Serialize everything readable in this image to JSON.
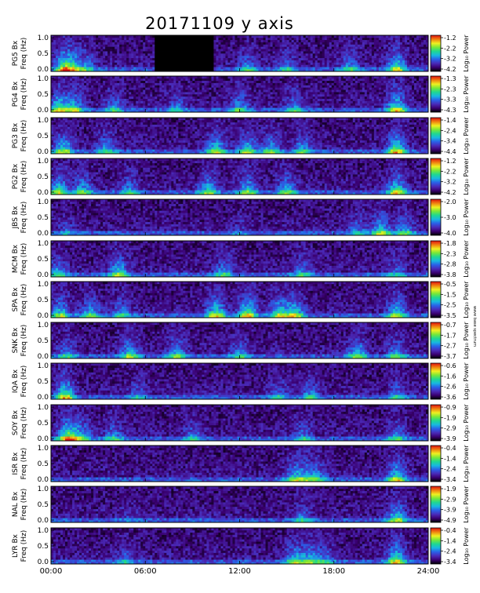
{
  "title": "20171109 y axis",
  "side_note": "wave base spectrum",
  "chart_data": {
    "type": "heatmap",
    "title": "20171109 y axis",
    "x_ticks": [
      "00:00",
      "06:00",
      "12:00",
      "18:00",
      "24:00"
    ],
    "x_range_hours": [
      0,
      24
    ],
    "y_ticks": [
      "1.0",
      "0.5",
      "0.0"
    ],
    "y_range_hz": [
      0.0,
      1.0
    ],
    "ylabel_freq": "Freq (Hz)",
    "colorbar_label": "Log₁₀ Power",
    "colormap": [
      "#000000",
      "#3a0070",
      "#4a2ab8",
      "#2a60e8",
      "#18b8e0",
      "#20d890",
      "#78e838",
      "#f0f020",
      "#f08010",
      "#e01010"
    ],
    "panels": [
      {
        "station": "PG5 Bx",
        "cbar_ticks": [
          "-1.2",
          "-2.2",
          "-3.2",
          "-4.2"
        ],
        "gaps_hours": [
          [
            6.6,
            10.3
          ]
        ],
        "activity": [
          [
            0.8,
            0.55
          ],
          [
            1.3,
            0.45
          ],
          [
            2.2,
            0.35
          ],
          [
            12.5,
            0.35
          ],
          [
            15.0,
            0.3
          ],
          [
            19.0,
            0.35
          ],
          [
            22.0,
            0.6
          ]
        ]
      },
      {
        "station": "PG4 Bx",
        "cbar_ticks": [
          "-1.3",
          "-2.3",
          "-3.3",
          "-4.3"
        ],
        "gaps_hours": [],
        "activity": [
          [
            0.5,
            0.6
          ],
          [
            1.5,
            0.5
          ],
          [
            4.0,
            0.35
          ],
          [
            8.0,
            0.3
          ],
          [
            12.0,
            0.4
          ],
          [
            15.5,
            0.35
          ],
          [
            22.0,
            0.65
          ]
        ]
      },
      {
        "station": "PG3 Bx",
        "cbar_ticks": [
          "-1.4",
          "-2.4",
          "-3.4",
          "-4.4"
        ],
        "gaps_hours": [],
        "activity": [
          [
            0.8,
            0.55
          ],
          [
            3.5,
            0.4
          ],
          [
            10.5,
            0.55
          ],
          [
            12.5,
            0.5
          ],
          [
            14.0,
            0.45
          ],
          [
            16.0,
            0.4
          ],
          [
            22.0,
            0.7
          ]
        ]
      },
      {
        "station": "PG2 Bx",
        "cbar_ticks": [
          "-1.2",
          "-2.2",
          "-3.2",
          "-4.2"
        ],
        "gaps_hours": [],
        "activity": [
          [
            0.5,
            0.55
          ],
          [
            2.0,
            0.45
          ],
          [
            5.0,
            0.35
          ],
          [
            10.0,
            0.5
          ],
          [
            12.5,
            0.5
          ],
          [
            15.0,
            0.45
          ],
          [
            22.0,
            0.6
          ]
        ]
      },
      {
        "station": "JBS Bx",
        "cbar_ticks": [
          "-2.0",
          "-3.0",
          "-4.0"
        ],
        "gaps_hours": [],
        "activity": [
          [
            1.0,
            0.2
          ],
          [
            12.0,
            0.15
          ],
          [
            19.5,
            0.3
          ],
          [
            21.0,
            0.55
          ],
          [
            22.5,
            0.45
          ]
        ]
      },
      {
        "station": "MCM Bx",
        "cbar_ticks": [
          "-1.8",
          "-2.3",
          "-2.8",
          "-3.8"
        ],
        "gaps_hours": [],
        "activity": [
          [
            0.5,
            0.4
          ],
          [
            4.3,
            0.55
          ],
          [
            11.0,
            0.4
          ],
          [
            16.0,
            0.35
          ],
          [
            22.0,
            0.3
          ]
        ]
      },
      {
        "station": "SPA Bx",
        "cbar_ticks": [
          "-0.5",
          "-1.5",
          "-2.5",
          "-3.5"
        ],
        "gaps_hours": [],
        "activity": [
          [
            0.6,
            0.5
          ],
          [
            2.5,
            0.45
          ],
          [
            4.5,
            0.35
          ],
          [
            10.5,
            0.65
          ],
          [
            12.5,
            0.7
          ],
          [
            14.5,
            0.55
          ],
          [
            15.5,
            0.6
          ],
          [
            22.0,
            0.55
          ]
        ]
      },
      {
        "station": "SNK Bx",
        "cbar_ticks": [
          "-0.7",
          "-1.7",
          "-2.7",
          "-3.7"
        ],
        "gaps_hours": [],
        "activity": [
          [
            1.0,
            0.35
          ],
          [
            5.0,
            0.5
          ],
          [
            8.0,
            0.45
          ],
          [
            12.0,
            0.35
          ],
          [
            19.5,
            0.5
          ],
          [
            22.0,
            0.4
          ]
        ]
      },
      {
        "station": "IQA Bx",
        "cbar_ticks": [
          "-0.6",
          "-1.6",
          "-2.6",
          "-3.6"
        ],
        "gaps_hours": [],
        "activity": [
          [
            0.9,
            0.7
          ],
          [
            5.5,
            0.25
          ],
          [
            14.5,
            0.3
          ],
          [
            16.5,
            0.35
          ],
          [
            22.0,
            0.3
          ]
        ]
      },
      {
        "station": "SOY Bx",
        "cbar_ticks": [
          "-0.9",
          "-1.9",
          "-2.9",
          "-3.9"
        ],
        "gaps_hours": [],
        "activity": [
          [
            1.1,
            0.8
          ],
          [
            2.0,
            0.4
          ],
          [
            4.0,
            0.35
          ],
          [
            9.0,
            0.3
          ],
          [
            16.0,
            0.3
          ],
          [
            22.0,
            0.35
          ]
        ]
      },
      {
        "station": "ISR Bx",
        "cbar_ticks": [
          "-0.4",
          "-1.4",
          "-2.4",
          "-3.4"
        ],
        "gaps_hours": [],
        "activity": [
          [
            15.5,
            0.45
          ],
          [
            16.3,
            0.35
          ],
          [
            17.0,
            0.3
          ],
          [
            22.0,
            0.6
          ]
        ]
      },
      {
        "station": "NAL Bx",
        "cbar_ticks": [
          "-1.9",
          "-2.9",
          "-3.9",
          "-4.9"
        ],
        "gaps_hours": [],
        "activity": [
          [
            5.0,
            0.15
          ],
          [
            16.0,
            0.3
          ],
          [
            22.0,
            0.55
          ]
        ]
      },
      {
        "station": "LYR Bx",
        "cbar_ticks": [
          "-0.4",
          "-1.4",
          "-2.4",
          "-3.4"
        ],
        "gaps_hours": [],
        "activity": [
          [
            4.8,
            0.25
          ],
          [
            15.5,
            0.5
          ],
          [
            16.5,
            0.45
          ],
          [
            17.5,
            0.3
          ],
          [
            22.0,
            0.65
          ]
        ]
      }
    ]
  }
}
